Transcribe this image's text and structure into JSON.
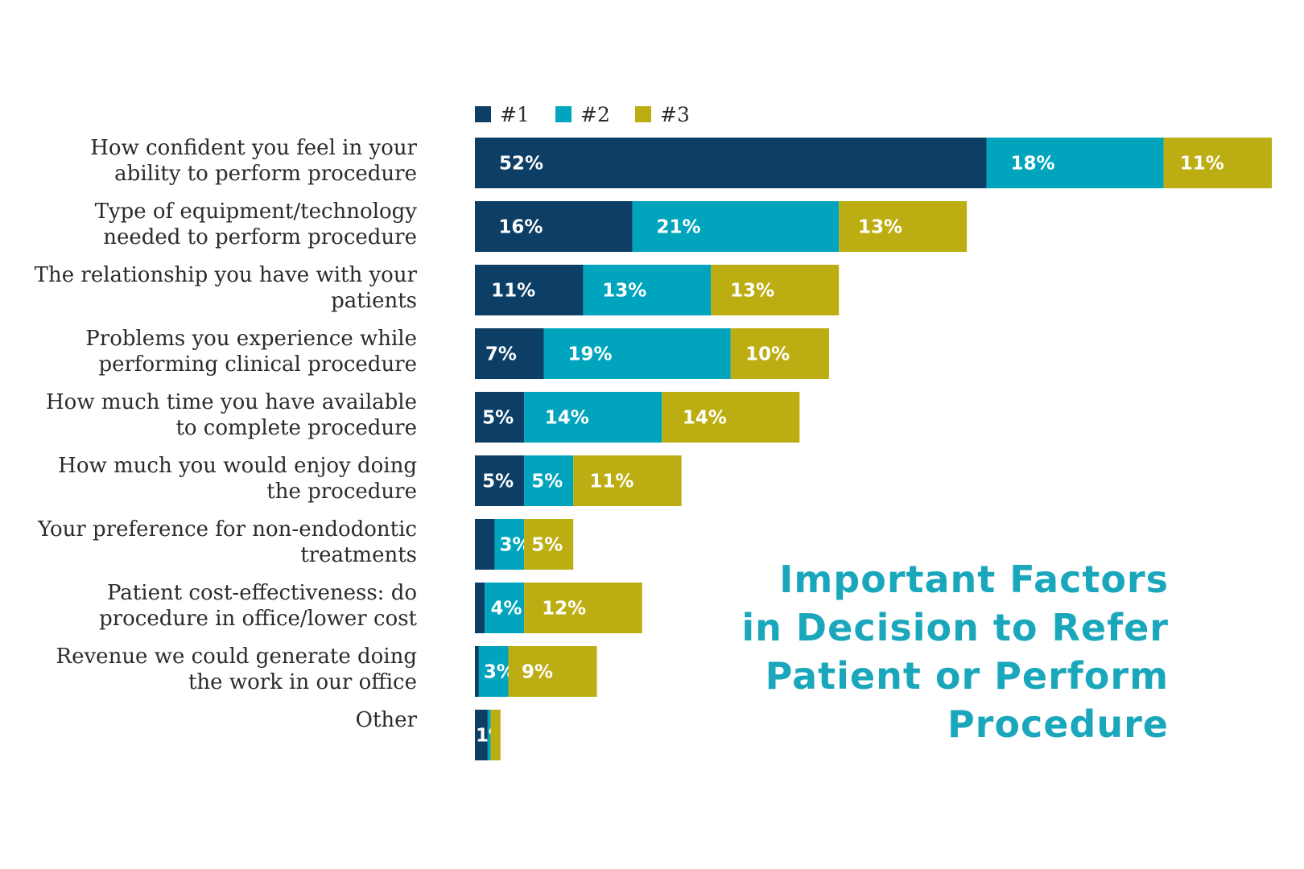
{
  "chart_data": {
    "type": "bar",
    "orientation": "horizontal",
    "stacked": true,
    "title_lines": [
      "Important Factors",
      "in Decision to Refer",
      "Patient or Perform",
      "Procedure"
    ],
    "categories": [
      [
        "How confident you feel in your",
        "ability to perform procedure"
      ],
      [
        "Type of equipment/technology",
        "needed to perform procedure"
      ],
      [
        "The relationship you have with your",
        "patients"
      ],
      [
        "Problems you experience while",
        "performing clinical procedure"
      ],
      [
        "How much time you have available",
        "to complete procedure"
      ],
      [
        "How much you would enjoy doing",
        "the procedure"
      ],
      [
        "Your preference for non-endodontic",
        "treatments"
      ],
      [
        "Patient cost-effectiveness: do",
        "procedure in office/lower cost"
      ],
      [
        "Revenue we could generate doing",
        "the work in our office"
      ],
      [
        "Other"
      ]
    ],
    "series": [
      {
        "name": "#1",
        "color": "#0c3e66",
        "values": [
          52,
          16,
          11,
          7,
          5,
          5,
          2,
          1,
          0.4,
          1.3
        ],
        "labels": [
          "52%",
          "16%",
          "11%",
          "7%",
          "5%",
          "5%",
          "",
          "",
          "",
          "1"
        ]
      },
      {
        "name": "#2",
        "color": "#00a5bd",
        "values": [
          18,
          21,
          13,
          19,
          14,
          5,
          3,
          4,
          3,
          0.3
        ],
        "labels": [
          "18%",
          "21%",
          "13%",
          "19%",
          "14%",
          "5%",
          "3%",
          "4%",
          "3%",
          "%"
        ]
      },
      {
        "name": "#3",
        "color": "#bcae12",
        "values": [
          11,
          13,
          13,
          10,
          14,
          11,
          5,
          12,
          9,
          1
        ],
        "labels": [
          "11%",
          "13%",
          "13%",
          "10%",
          "14%",
          "11%",
          "5%",
          "12%",
          "9%",
          ""
        ]
      }
    ],
    "xlim": [
      0,
      81
    ],
    "grid": false,
    "legend": "top-left"
  },
  "colors": {
    "title": "#1aa7bc",
    "label_text": "#2b2b2b"
  }
}
